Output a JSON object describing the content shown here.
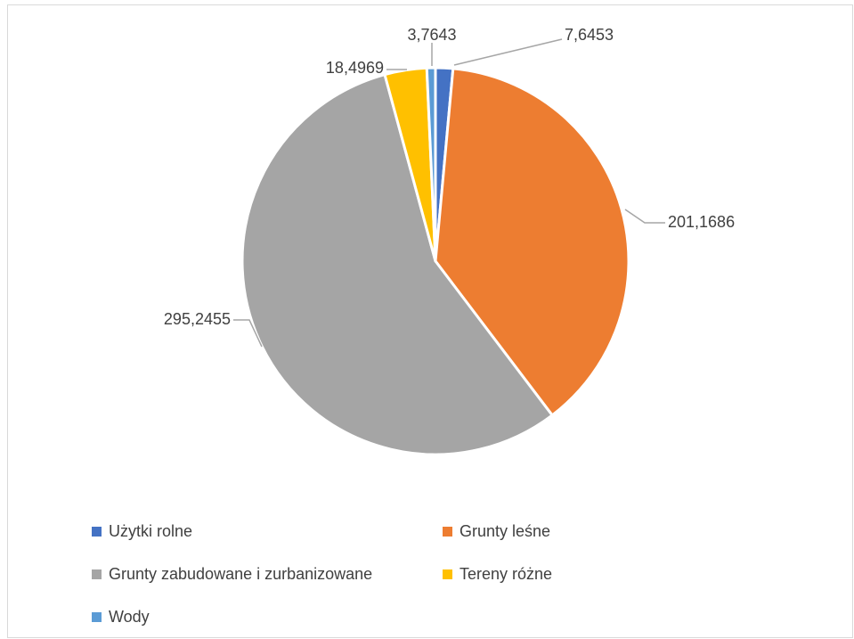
{
  "chart_data": {
    "type": "pie",
    "title": "",
    "categories": [
      "Użytki rolne",
      "Grunty leśne",
      "Grunty zabudowane i zurbanizowane",
      "Tereny różne",
      "Wody"
    ],
    "values": [
      7.6453,
      201.1686,
      295.2455,
      18.4969,
      3.7643
    ],
    "value_labels": [
      "7,6453",
      "201,1686",
      "295,2455",
      "18,4969",
      "3,7643"
    ],
    "colors": [
      "#4472C4",
      "#ED7D31",
      "#A5A5A5",
      "#FFC000",
      "#5B9BD5"
    ],
    "legend_position": "bottom",
    "data_labels": "outside-with-leader-lines"
  }
}
